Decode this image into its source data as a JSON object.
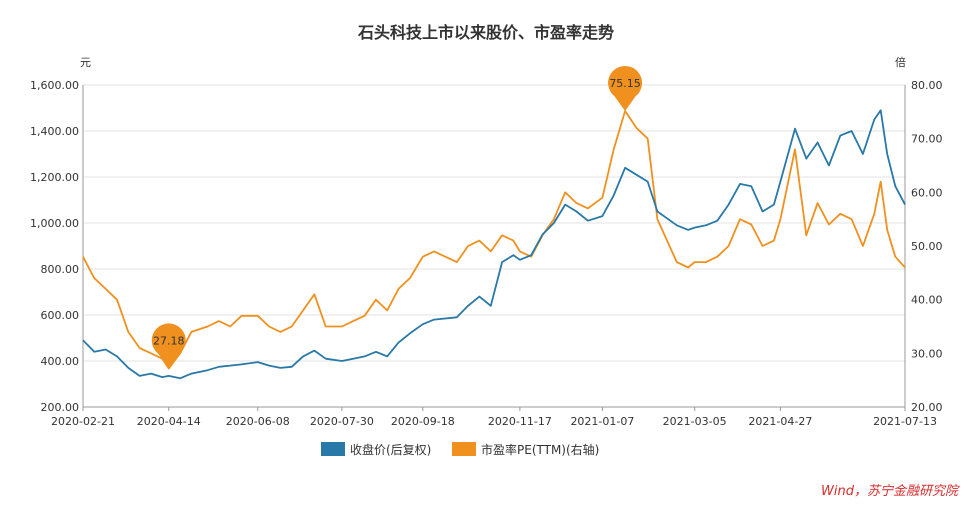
{
  "chart_data": {
    "type": "line",
    "title": "石头科技上市以来股价、市盈率走势",
    "left_unit": "元",
    "right_unit": "倍",
    "x_ticks": [
      "2020-02-21",
      "2020-04-14",
      "2020-06-08",
      "2020-07-30",
      "2020-09-18",
      "2020-11-17",
      "2021-01-07",
      "2021-03-05",
      "2021-04-27",
      "2021-07-13"
    ],
    "y_left_ticks": [
      "200.00",
      "400.00",
      "600.00",
      "800.00",
      "1,000.00",
      "1,200.00",
      "1,400.00",
      "1,600.00"
    ],
    "y_right_ticks": [
      "20.00",
      "30.00",
      "40.00",
      "50.00",
      "60.00",
      "70.00",
      "80.00"
    ],
    "ylim_left": [
      200,
      1600
    ],
    "ylim_right": [
      20,
      80
    ],
    "grid": true,
    "legend_position": "bottom",
    "series": [
      {
        "name": "收盘价(后复权)",
        "axis": "left",
        "color": "#2878a8",
        "values": [
          [
            "2020-02-21",
            490
          ],
          [
            "2020-02-28",
            440
          ],
          [
            "2020-03-06",
            450
          ],
          [
            "2020-03-13",
            420
          ],
          [
            "2020-03-20",
            370
          ],
          [
            "2020-03-27",
            335
          ],
          [
            "2020-04-03",
            345
          ],
          [
            "2020-04-10",
            330
          ],
          [
            "2020-04-14",
            335
          ],
          [
            "2020-04-21",
            325
          ],
          [
            "2020-04-28",
            345
          ],
          [
            "2020-05-08",
            360
          ],
          [
            "2020-05-15",
            375
          ],
          [
            "2020-05-22",
            380
          ],
          [
            "2020-05-29",
            385
          ],
          [
            "2020-06-08",
            395
          ],
          [
            "2020-06-15",
            380
          ],
          [
            "2020-06-22",
            370
          ],
          [
            "2020-06-29",
            375
          ],
          [
            "2020-07-06",
            420
          ],
          [
            "2020-07-13",
            445
          ],
          [
            "2020-07-20",
            410
          ],
          [
            "2020-07-30",
            400
          ],
          [
            "2020-08-06",
            410
          ],
          [
            "2020-08-13",
            420
          ],
          [
            "2020-08-20",
            440
          ],
          [
            "2020-08-27",
            420
          ],
          [
            "2020-09-03",
            480
          ],
          [
            "2020-09-10",
            520
          ],
          [
            "2020-09-18",
            560
          ],
          [
            "2020-09-25",
            580
          ],
          [
            "2020-10-09",
            590
          ],
          [
            "2020-10-16",
            640
          ],
          [
            "2020-10-23",
            680
          ],
          [
            "2020-10-30",
            640
          ],
          [
            "2020-11-06",
            830
          ],
          [
            "2020-11-13",
            860
          ],
          [
            "2020-11-17",
            840
          ],
          [
            "2020-11-24",
            860
          ],
          [
            "2020-12-01",
            950
          ],
          [
            "2020-12-08",
            1000
          ],
          [
            "2020-12-15",
            1080
          ],
          [
            "2020-12-22",
            1050
          ],
          [
            "2020-12-29",
            1010
          ],
          [
            "2021-01-07",
            1030
          ],
          [
            "2021-01-14",
            1120
          ],
          [
            "2021-01-21",
            1240
          ],
          [
            "2021-01-28",
            1210
          ],
          [
            "2021-02-04",
            1180
          ],
          [
            "2021-02-10",
            1050
          ],
          [
            "2021-02-22",
            990
          ],
          [
            "2021-03-01",
            970
          ],
          [
            "2021-03-05",
            980
          ],
          [
            "2021-03-12",
            990
          ],
          [
            "2021-03-19",
            1010
          ],
          [
            "2021-03-26",
            1080
          ],
          [
            "2021-04-02",
            1170
          ],
          [
            "2021-04-09",
            1160
          ],
          [
            "2021-04-16",
            1050
          ],
          [
            "2021-04-23",
            1080
          ],
          [
            "2021-04-27",
            1180
          ],
          [
            "2021-05-06",
            1410
          ],
          [
            "2021-05-13",
            1280
          ],
          [
            "2021-05-20",
            1350
          ],
          [
            "2021-05-27",
            1250
          ],
          [
            "2021-06-03",
            1380
          ],
          [
            "2021-06-10",
            1400
          ],
          [
            "2021-06-17",
            1300
          ],
          [
            "2021-06-24",
            1450
          ],
          [
            "2021-06-28",
            1490
          ],
          [
            "2021-07-02",
            1300
          ],
          [
            "2021-07-07",
            1160
          ],
          [
            "2021-07-13",
            1080
          ]
        ]
      },
      {
        "name": "市盈率PE(TTM)(右轴)",
        "axis": "right",
        "color": "#f0901e",
        "values": [
          [
            "2020-02-21",
            48
          ],
          [
            "2020-02-28",
            44
          ],
          [
            "2020-03-06",
            42
          ],
          [
            "2020-03-13",
            40
          ],
          [
            "2020-03-20",
            34
          ],
          [
            "2020-03-27",
            31
          ],
          [
            "2020-04-03",
            30
          ],
          [
            "2020-04-10",
            29
          ],
          [
            "2020-04-14",
            27.18
          ],
          [
            "2020-04-21",
            30
          ],
          [
            "2020-04-28",
            34
          ],
          [
            "2020-05-08",
            35
          ],
          [
            "2020-05-15",
            36
          ],
          [
            "2020-05-22",
            35
          ],
          [
            "2020-05-29",
            37
          ],
          [
            "2020-06-08",
            37
          ],
          [
            "2020-06-15",
            35
          ],
          [
            "2020-06-22",
            34
          ],
          [
            "2020-06-29",
            35
          ],
          [
            "2020-07-06",
            38
          ],
          [
            "2020-07-13",
            41
          ],
          [
            "2020-07-20",
            35
          ],
          [
            "2020-07-30",
            35
          ],
          [
            "2020-08-06",
            36
          ],
          [
            "2020-08-13",
            37
          ],
          [
            "2020-08-20",
            40
          ],
          [
            "2020-08-27",
            38
          ],
          [
            "2020-09-03",
            42
          ],
          [
            "2020-09-10",
            44
          ],
          [
            "2020-09-18",
            48
          ],
          [
            "2020-09-25",
            49
          ],
          [
            "2020-10-09",
            47
          ],
          [
            "2020-10-16",
            50
          ],
          [
            "2020-10-23",
            51
          ],
          [
            "2020-10-30",
            49
          ],
          [
            "2020-11-06",
            52
          ],
          [
            "2020-11-13",
            51
          ],
          [
            "2020-11-17",
            49
          ],
          [
            "2020-11-24",
            48
          ],
          [
            "2020-12-01",
            52
          ],
          [
            "2020-12-08",
            55
          ],
          [
            "2020-12-15",
            60
          ],
          [
            "2020-12-22",
            58
          ],
          [
            "2020-12-29",
            57
          ],
          [
            "2021-01-07",
            59
          ],
          [
            "2021-01-14",
            68
          ],
          [
            "2021-01-21",
            75.15
          ],
          [
            "2021-01-28",
            72
          ],
          [
            "2021-02-04",
            70
          ],
          [
            "2021-02-10",
            55
          ],
          [
            "2021-02-22",
            47
          ],
          [
            "2021-03-01",
            46
          ],
          [
            "2021-03-05",
            47
          ],
          [
            "2021-03-12",
            47
          ],
          [
            "2021-03-19",
            48
          ],
          [
            "2021-03-26",
            50
          ],
          [
            "2021-04-02",
            55
          ],
          [
            "2021-04-09",
            54
          ],
          [
            "2021-04-16",
            50
          ],
          [
            "2021-04-23",
            51
          ],
          [
            "2021-04-27",
            55
          ],
          [
            "2021-05-06",
            68
          ],
          [
            "2021-05-13",
            52
          ],
          [
            "2021-05-20",
            58
          ],
          [
            "2021-05-27",
            54
          ],
          [
            "2021-06-03",
            56
          ],
          [
            "2021-06-10",
            55
          ],
          [
            "2021-06-17",
            50
          ],
          [
            "2021-06-24",
            56
          ],
          [
            "2021-06-28",
            62
          ],
          [
            "2021-07-02",
            53
          ],
          [
            "2021-07-07",
            48
          ],
          [
            "2021-07-13",
            46
          ]
        ]
      }
    ],
    "annotations": [
      {
        "series": 1,
        "date": "2020-04-14",
        "value": 27.18,
        "label": "27.18"
      },
      {
        "series": 1,
        "date": "2021-01-21",
        "value": 75.15,
        "label": "75.15"
      }
    ],
    "source": "Wind，苏宁金融研究院"
  }
}
